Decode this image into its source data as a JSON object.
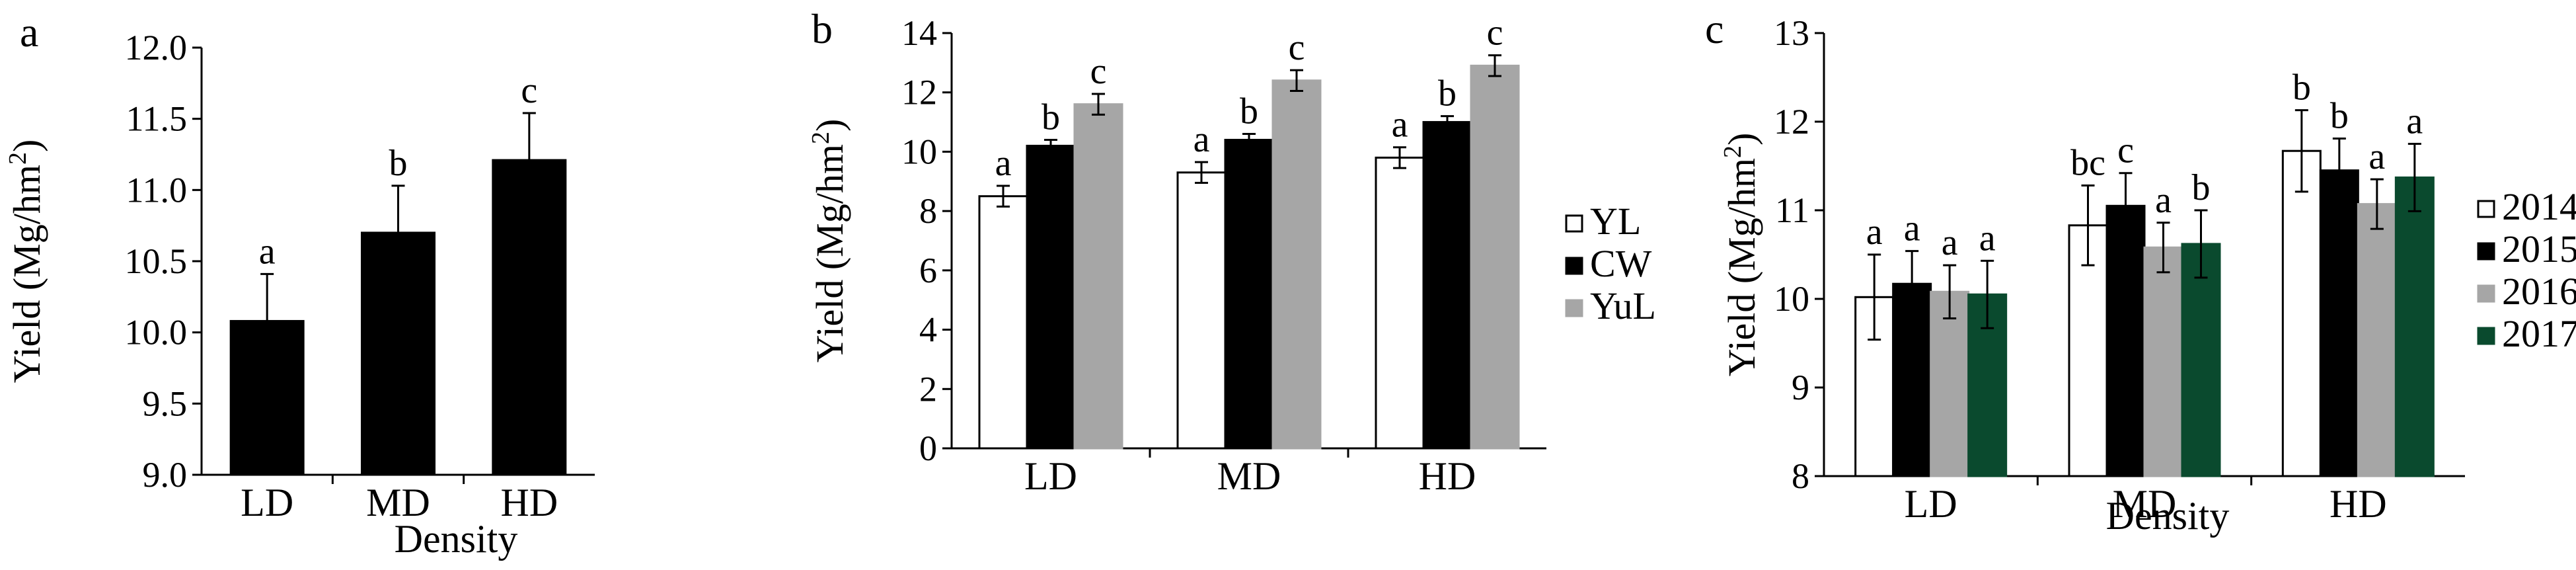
{
  "charts": [
    {
      "panel_label": "a",
      "type": "bar",
      "ylabel_text": "Yield (Mg/hm",
      "ylabel_sup": "2",
      "ylabel_close": ")",
      "xlabel": "Density",
      "categories": [
        "LD",
        "MD",
        "HD"
      ],
      "ylim": [
        9.0,
        12.0
      ],
      "yticks": [
        "9.0",
        "9.5",
        "10.0",
        "10.5",
        "11.0",
        "11.5",
        "12.0"
      ],
      "ytick_values": [
        9.0,
        9.5,
        10.0,
        10.5,
        11.0,
        11.5,
        12.0
      ],
      "series": [
        {
          "values": [
            10.08,
            10.7,
            11.21
          ],
          "errors": [
            0.33,
            0.33,
            0.33
          ],
          "letters": [
            "a",
            "b",
            "c"
          ],
          "fill": "#000000",
          "stroke": "#000000"
        }
      ],
      "legend": []
    },
    {
      "panel_label": "b",
      "type": "bar",
      "ylabel_text": "Yield (Mg/hm",
      "ylabel_sup": "2",
      "ylabel_close": ")",
      "xlabel": "",
      "categories": [
        "LD",
        "MD",
        "HD"
      ],
      "ylim": [
        0,
        14
      ],
      "yticks": [
        "0",
        "2",
        "4",
        "6",
        "8",
        "10",
        "12",
        "14"
      ],
      "ytick_values": [
        0,
        2,
        4,
        6,
        8,
        10,
        12,
        14
      ],
      "series": [
        {
          "name": "YL",
          "values": [
            8.5,
            9.3,
            9.8
          ],
          "errors": [
            0.35,
            0.35,
            0.35
          ],
          "letters": [
            "a",
            "a",
            "a"
          ],
          "fill": "#ffffff",
          "stroke": "#000000"
        },
        {
          "name": "CW",
          "values": [
            10.2,
            10.4,
            11.0
          ],
          "errors": [
            0.2,
            0.2,
            0.2
          ],
          "letters": [
            "b",
            "b",
            "b"
          ],
          "fill": "#000000",
          "stroke": "#000000"
        },
        {
          "name": "YuL",
          "values": [
            11.6,
            12.4,
            12.9
          ],
          "errors": [
            0.35,
            0.35,
            0.35
          ],
          "letters": [
            "c",
            "c",
            "c"
          ],
          "fill": "#a6a6a6",
          "stroke": "#a6a6a6"
        }
      ],
      "legend": [
        "YL",
        "CW",
        "YuL"
      ]
    },
    {
      "panel_label": "c",
      "type": "bar",
      "ylabel_text": "Yield (Mg/hm",
      "ylabel_sup": "2",
      "ylabel_close": ")",
      "xlabel": "Density",
      "categories": [
        "LD",
        "MD",
        "HD"
      ],
      "ylim": [
        8,
        13
      ],
      "yticks": [
        "8",
        "9",
        "10",
        "11",
        "12",
        "13"
      ],
      "ytick_values": [
        8,
        9,
        10,
        11,
        12,
        13
      ],
      "series": [
        {
          "name": "2014",
          "values": [
            10.02,
            10.83,
            11.67
          ],
          "errors": [
            0.48,
            0.45,
            0.46
          ],
          "letters": [
            "a",
            "bc",
            "b"
          ],
          "fill": "#ffffff",
          "stroke": "#000000"
        },
        {
          "name": "2015",
          "values": [
            10.17,
            11.05,
            11.45
          ],
          "errors": [
            0.37,
            0.37,
            0.36
          ],
          "letters": [
            "a",
            "c",
            "b"
          ],
          "fill": "#000000",
          "stroke": "#000000"
        },
        {
          "name": "2016",
          "values": [
            10.08,
            10.58,
            11.07
          ],
          "errors": [
            0.3,
            0.28,
            0.28
          ],
          "letters": [
            "a",
            "a",
            "a"
          ],
          "fill": "#a6a6a6",
          "stroke": "#a6a6a6"
        },
        {
          "name": "2017",
          "values": [
            10.05,
            10.62,
            11.37
          ],
          "errors": [
            0.38,
            0.38,
            0.38
          ],
          "letters": [
            "a",
            "b",
            "a"
          ],
          "fill": "#0a4a2e",
          "stroke": "#0a4a2e"
        }
      ],
      "legend": [
        "2014",
        "2015",
        "2016",
        "2017"
      ]
    }
  ]
}
